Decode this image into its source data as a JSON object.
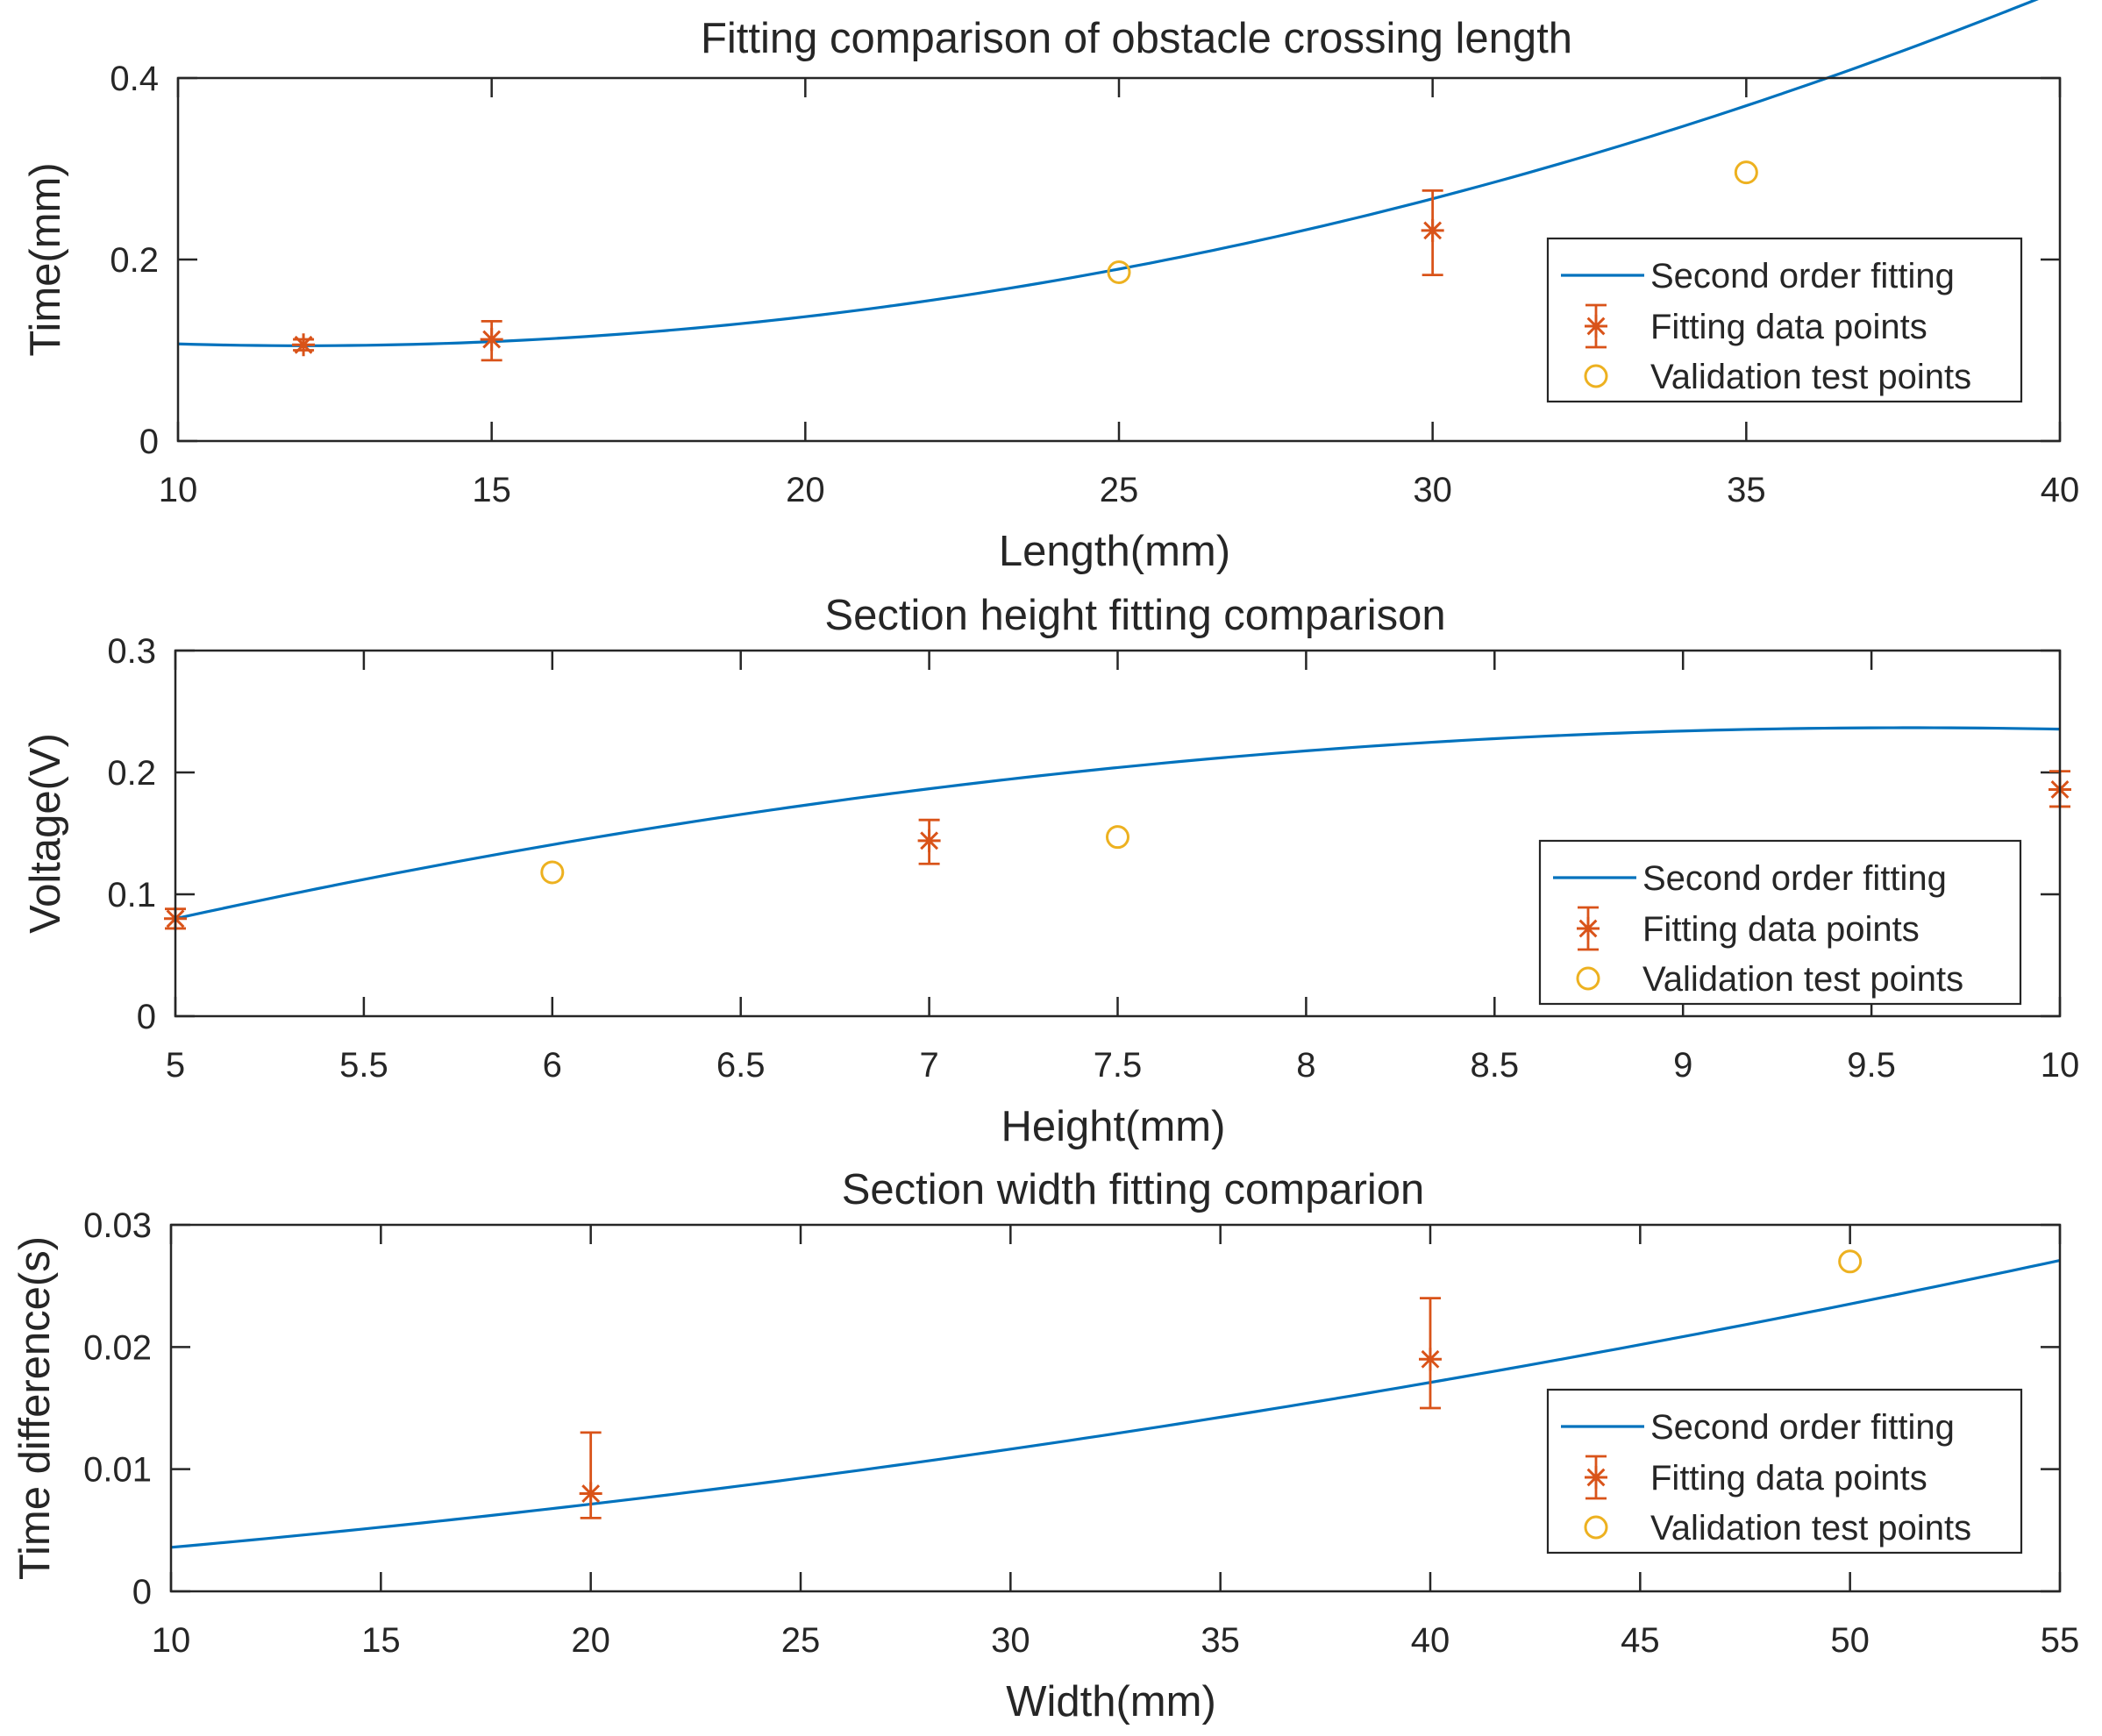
{
  "colors": {
    "fit_line": "#0072BD",
    "fitting_points": "#D95319",
    "validation_points": "#EDB120",
    "axes": "#262626",
    "background": "#FFFFFF"
  },
  "chart_data": [
    {
      "type": "line",
      "title": "Fitting comparison of obstacle crossing length",
      "xlabel": "Length(mm)",
      "ylabel": "Time(mm)",
      "xlim": [
        10,
        40
      ],
      "ylim": [
        0,
        0.4
      ],
      "xticks": [
        10,
        15,
        20,
        25,
        30,
        35,
        40
      ],
      "xtick_labels": [
        "10",
        "15",
        "20",
        "25",
        "30",
        "35",
        "40"
      ],
      "yticks": [
        0,
        0.2,
        0.4
      ],
      "ytick_labels": [
        "0",
        "0.2",
        "0.4"
      ],
      "fit_curve": {
        "name": "Second order fitting",
        "coeffs": [
          0.0005,
          -0.012,
          0.177
        ],
        "x_range": [
          10,
          40
        ]
      },
      "fitting_points": {
        "name": "Fitting data points",
        "x": [
          12,
          15,
          30
        ],
        "y": [
          0.106,
          0.112,
          0.232
        ],
        "err_low": [
          0.006,
          0.023,
          0.049
        ],
        "err_high": [
          0.006,
          0.02,
          0.044
        ]
      },
      "validation_points": {
        "name": "Validation test points",
        "x": [
          25,
          35
        ],
        "y": [
          0.186,
          0.296
        ]
      },
      "legend": {
        "position": "right",
        "labels": [
          "Second order fitting",
          "Fitting data points",
          "Validation test points"
        ]
      }
    },
    {
      "type": "line",
      "title": "Section height fitting comparison",
      "xlabel": "Height(mm)",
      "ylabel": "Voltage(V)",
      "xlim": [
        5,
        10
      ],
      "ylim": [
        0,
        0.3
      ],
      "xticks": [
        5,
        5.5,
        6,
        6.5,
        7,
        7.5,
        8,
        8.5,
        9,
        9.5,
        10
      ],
      "xtick_labels": [
        "5",
        "5.5",
        "6",
        "6.5",
        "7",
        "7.5",
        "8",
        "8.5",
        "9",
        "9.5",
        "10"
      ],
      "yticks": [
        0,
        0.1,
        0.2,
        0.3
      ],
      "ytick_labels": [
        "0",
        "0.1",
        "0.2",
        "0.3"
      ],
      "fit_curve": {
        "name": "Second order fitting",
        "coeffs": [
          -0.0074,
          0.1421,
          -0.4455
        ],
        "x_range": [
          5,
          10
        ]
      },
      "fitting_points": {
        "name": "Fitting data points",
        "x": [
          5,
          7,
          10
        ],
        "y": [
          0.08,
          0.144,
          0.186
        ],
        "err_low": [
          0.008,
          0.019,
          0.014
        ],
        "err_high": [
          0.008,
          0.017,
          0.015
        ]
      },
      "validation_points": {
        "name": "Validation test points",
        "x": [
          6,
          7.5
        ],
        "y": [
          0.118,
          0.147
        ]
      },
      "legend": {
        "position": "right",
        "labels": [
          "Second order fitting",
          "Fitting data points",
          "Validation test points"
        ]
      }
    },
    {
      "type": "line",
      "title": "Section width fitting comparion",
      "xlabel": "Width(mm)",
      "ylabel": "Time difference(s)",
      "xlim": [
        10,
        55
      ],
      "ylim": [
        0,
        0.03
      ],
      "xticks": [
        10,
        15,
        20,
        25,
        30,
        35,
        40,
        45,
        50,
        55
      ],
      "xtick_labels": [
        "10",
        "15",
        "20",
        "25",
        "30",
        "35",
        "40",
        "45",
        "50",
        "55"
      ],
      "yticks": [
        0,
        0.01,
        0.02,
        0.03
      ],
      "ytick_labels": [
        "0",
        "0.01",
        "0.02",
        "0.03"
      ],
      "fit_curve": {
        "name": "Second order fitting",
        "coeffs": [
          4.8e-06,
          0.00021,
          0.00102
        ],
        "x_range": [
          10,
          55
        ]
      },
      "fitting_points": {
        "name": "Fitting data points",
        "x": [
          20,
          40
        ],
        "y": [
          0.008,
          0.019
        ],
        "err_low": [
          0.002,
          0.004
        ],
        "err_high": [
          0.005,
          0.005
        ]
      },
      "validation_points": {
        "name": "Validation test points",
        "x": [
          50
        ],
        "y": [
          0.027
        ]
      },
      "legend": {
        "position": "right",
        "labels": [
          "Second order fitting",
          "Fitting data points",
          "Validation test points"
        ]
      }
    }
  ]
}
